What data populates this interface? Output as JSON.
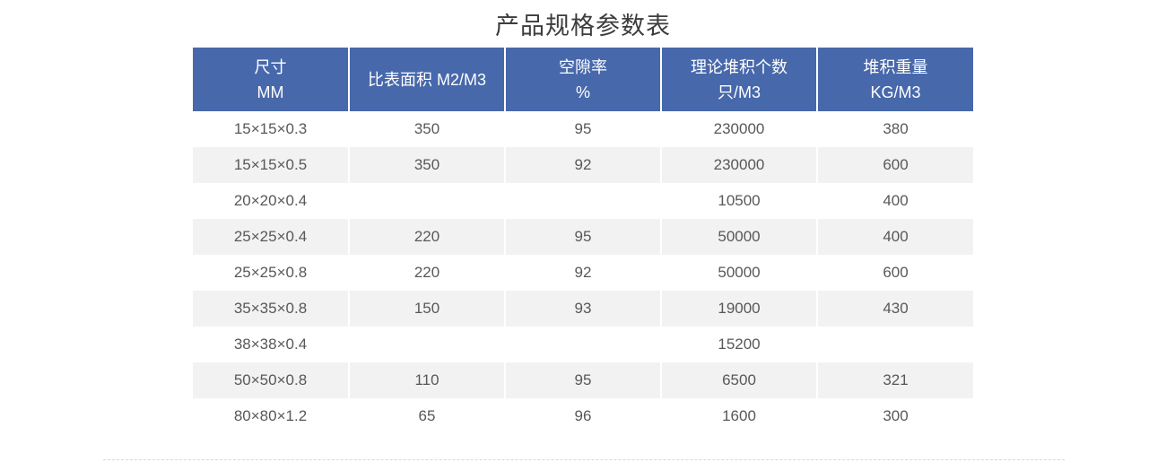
{
  "title": "产品规格参数表",
  "table": {
    "columns": [
      {
        "lines": [
          "尺寸",
          "MM"
        ]
      },
      {
        "lines": [
          "比表面积 M2/M3"
        ]
      },
      {
        "lines": [
          "空隙率",
          "%"
        ]
      },
      {
        "lines": [
          "理论堆积个数",
          "只/M3"
        ]
      },
      {
        "lines": [
          "堆积重量",
          "KG/M3"
        ]
      }
    ],
    "rows": [
      [
        "15×15×0.3",
        "350",
        "95",
        "230000",
        "380"
      ],
      [
        "15×15×0.5",
        "350",
        "92",
        "230000",
        "600"
      ],
      [
        "20×20×0.4",
        "",
        "",
        "10500",
        "400"
      ],
      [
        "25×25×0.4",
        "220",
        "95",
        "50000",
        "400"
      ],
      [
        "25×25×0.8",
        "220",
        "92",
        "50000",
        "600"
      ],
      [
        "35×35×0.8",
        "150",
        "93",
        "19000",
        "430"
      ],
      [
        "38×38×0.4",
        "",
        "",
        "15200",
        ""
      ],
      [
        "50×50×0.8",
        "110",
        "95",
        "6500",
        "321"
      ],
      [
        "80×80×1.2",
        "65",
        "96",
        "1600",
        "300"
      ]
    ]
  },
  "colors": {
    "header_bg": "#4768ab",
    "header_text": "#ffffff",
    "stripe_bg": "#f2f2f2",
    "body_text": "#58585b",
    "title_text": "#3d3d3d",
    "divider": "#d9d9d9"
  }
}
